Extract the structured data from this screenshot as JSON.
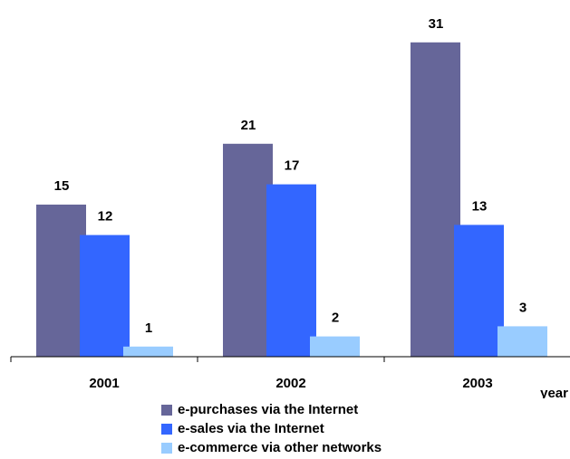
{
  "chart_data": {
    "type": "bar",
    "categories": [
      "2001",
      "2002",
      "2003"
    ],
    "xlabel": "year",
    "ylabel": "",
    "ylim": [
      0,
      31
    ],
    "grid": false,
    "legend_position": "bottom",
    "series": [
      {
        "name": "e-purchases via the Internet",
        "color": "#666699",
        "values": [
          15,
          21,
          31
        ]
      },
      {
        "name": "e-sales via the Internet",
        "color": "#3366ff",
        "values": [
          12,
          17,
          13
        ]
      },
      {
        "name": "e-commerce via other networks",
        "color": "#99ccff",
        "values": [
          1,
          2,
          3
        ]
      }
    ]
  }
}
